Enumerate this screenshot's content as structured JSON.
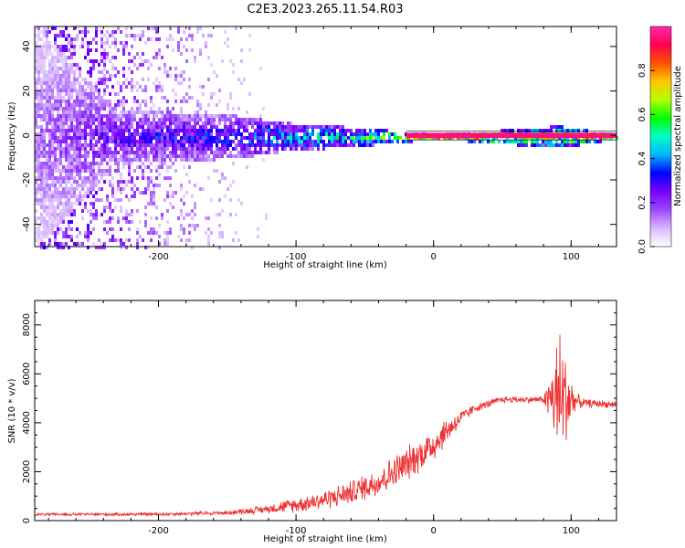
{
  "title": "C2E3.2023.265.11.54.R03",
  "chart_data": [
    {
      "type": "heatmap",
      "name": "spectrogram",
      "xlabel": "Height of straight line (km)",
      "ylabel": "Frequency (Hz)",
      "xlim": [
        -290,
        133
      ],
      "ylim": [
        -50,
        49
      ],
      "xticks": [
        -200,
        -100,
        0,
        100
      ],
      "yticks": [
        -40,
        -20,
        0,
        20,
        40
      ],
      "line_frequency_hz": 0,
      "colorbar": {
        "label": "Normalized spectral amplitude",
        "range": [
          0,
          1
        ],
        "ticks": [
          0.0,
          0.2,
          0.4,
          0.6,
          0.8
        ],
        "tick_labels": [
          "0.0",
          "0.2",
          "0.4",
          "0.6",
          "0.8"
        ],
        "colormap": [
          "#ffffff",
          "#d8b8ff",
          "#9c49ff",
          "#7a00ff",
          "#0000ff",
          "#00b4ff",
          "#00ffc8",
          "#00ff00",
          "#b4ff00",
          "#ffc800",
          "#ff5000",
          "#ff0050",
          "#ff2ab4"
        ]
      },
      "description_points": [
        {
          "x": -290,
          "spread_hz": 50,
          "amplitude": 0.15
        },
        {
          "x": -230,
          "spread_hz": 12,
          "amplitude": 0.3
        },
        {
          "x": -150,
          "spread_hz": 10,
          "amplitude": 0.35
        },
        {
          "x": -100,
          "spread_hz": 6,
          "amplitude": 0.5
        },
        {
          "x": -50,
          "spread_hz": 4,
          "amplitude": 0.6
        },
        {
          "x": 0,
          "spread_hz": 1,
          "amplitude": 0.9
        },
        {
          "x": 90,
          "spread_hz": 5,
          "amplitude": 0.7
        },
        {
          "x": 133,
          "spread_hz": 1,
          "amplitude": 0.95
        }
      ]
    },
    {
      "type": "line",
      "name": "snr",
      "xlabel": "Height of straight line (km)",
      "ylabel": "SNR (10 * v/v)",
      "xlim": [
        -290,
        133
      ],
      "ylim": [
        0,
        9000
      ],
      "xticks": [
        -200,
        -100,
        0,
        100
      ],
      "yticks": [
        0,
        2000,
        4000,
        6000,
        8000
      ],
      "color": "#ee3030",
      "envelope": [
        {
          "x": -290,
          "mean": 250,
          "noise": 60
        },
        {
          "x": -200,
          "mean": 260,
          "noise": 80
        },
        {
          "x": -150,
          "mean": 320,
          "noise": 90
        },
        {
          "x": -120,
          "mean": 480,
          "noise": 200
        },
        {
          "x": -100,
          "mean": 650,
          "noise": 350
        },
        {
          "x": -80,
          "mean": 850,
          "noise": 450
        },
        {
          "x": -60,
          "mean": 1150,
          "noise": 550
        },
        {
          "x": -40,
          "mean": 1600,
          "noise": 700
        },
        {
          "x": -20,
          "mean": 2300,
          "noise": 800
        },
        {
          "x": 0,
          "mean": 3100,
          "noise": 800
        },
        {
          "x": 10,
          "mean": 3700,
          "noise": 600
        },
        {
          "x": 20,
          "mean": 4200,
          "noise": 350
        },
        {
          "x": 30,
          "mean": 4600,
          "noise": 200
        },
        {
          "x": 50,
          "mean": 4950,
          "noise": 150
        },
        {
          "x": 80,
          "mean": 4950,
          "noise": 150
        },
        {
          "x": 87,
          "mean": 5000,
          "noise": 1800
        },
        {
          "x": 92,
          "mean": 5000,
          "noise": 3500
        },
        {
          "x": 97,
          "mean": 5000,
          "noise": 2000
        },
        {
          "x": 103,
          "mean": 4900,
          "noise": 400
        },
        {
          "x": 110,
          "mean": 4800,
          "noise": 200
        },
        {
          "x": 133,
          "mean": 4750,
          "noise": 150
        }
      ]
    }
  ]
}
